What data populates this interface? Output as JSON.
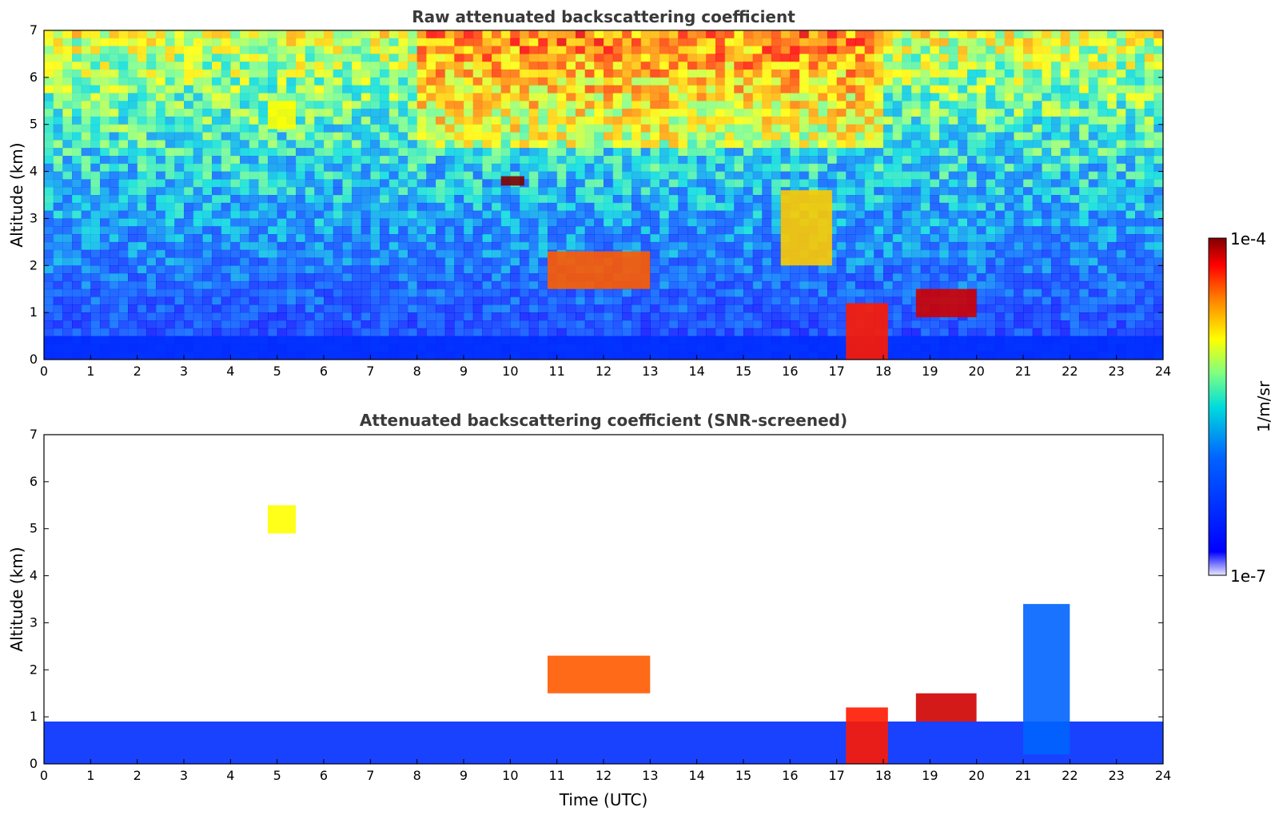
{
  "chart_data": [
    {
      "type": "heatmap",
      "title": "Raw attenuated backscattering coefficient",
      "xlabel": "",
      "ylabel": "Altitude (km)",
      "xlim": [
        0,
        24
      ],
      "ylim": [
        0,
        7
      ],
      "x_ticks": [
        "0",
        "1",
        "2",
        "3",
        "4",
        "5",
        "6",
        "7",
        "8",
        "9",
        "10",
        "11",
        "12",
        "13",
        "14",
        "15",
        "16",
        "17",
        "18",
        "19",
        "20",
        "21",
        "22",
        "23",
        "24"
      ],
      "y_ticks": [
        "0",
        "1",
        "2",
        "3",
        "4",
        "5",
        "6",
        "7"
      ],
      "features": [
        {
          "t": [
            0,
            24
          ],
          "alt": [
            0,
            0.5
          ],
          "level": 0.2
        },
        {
          "t": [
            17.2,
            18.1
          ],
          "alt": [
            0,
            1.2
          ],
          "level": 0.9
        },
        {
          "t": [
            10.8,
            13.0
          ],
          "alt": [
            1.5,
            2.3
          ],
          "level": 0.85
        },
        {
          "t": [
            18.7,
            20.0
          ],
          "alt": [
            0.9,
            1.5
          ],
          "level": 0.95
        },
        {
          "t": [
            9.8,
            10.3
          ],
          "alt": [
            3.7,
            3.9
          ],
          "level": 1.0
        },
        {
          "t": [
            4.8,
            5.4
          ],
          "alt": [
            4.9,
            5.5
          ],
          "level": 0.7
        },
        {
          "t": [
            15.8,
            16.9
          ],
          "alt": [
            2.0,
            3.6
          ],
          "level": 0.75
        }
      ]
    },
    {
      "type": "heatmap",
      "title": "Attenuated backscattering coefficient (SNR-screened)",
      "xlabel": "Time (UTC)",
      "ylabel": "Altitude (km)",
      "xlim": [
        0,
        24
      ],
      "ylim": [
        0,
        7
      ],
      "x_ticks": [
        "0",
        "1",
        "2",
        "3",
        "4",
        "5",
        "6",
        "7",
        "8",
        "9",
        "10",
        "11",
        "12",
        "13",
        "14",
        "15",
        "16",
        "17",
        "18",
        "19",
        "20",
        "21",
        "22",
        "23",
        "24"
      ],
      "y_ticks": [
        "0",
        "1",
        "2",
        "3",
        "4",
        "5",
        "6",
        "7"
      ],
      "features": [
        {
          "t": [
            0,
            24
          ],
          "alt": [
            0,
            0.9
          ],
          "level": 0.2
        },
        {
          "t": [
            17.2,
            18.1
          ],
          "alt": [
            0,
            1.2
          ],
          "level": 0.9
        },
        {
          "t": [
            10.8,
            13.0
          ],
          "alt": [
            1.5,
            2.3
          ],
          "level": 0.85
        },
        {
          "t": [
            18.7,
            20.0
          ],
          "alt": [
            0.9,
            1.5
          ],
          "level": 0.95
        },
        {
          "t": [
            21.0,
            22.0
          ],
          "alt": [
            0.2,
            3.4
          ],
          "level": 0.35
        },
        {
          "t": [
            4.8,
            5.4
          ],
          "alt": [
            4.9,
            5.5
          ],
          "level": 0.7
        }
      ]
    }
  ],
  "colorbar": {
    "label": "1/m/sr",
    "max_label": "1e-4",
    "min_label": "1e-7",
    "colormap": [
      "#e8e8ff",
      "#0000ff",
      "#00c8ff",
      "#80ff80",
      "#ffff00",
      "#ff8000",
      "#ff0000",
      "#800000"
    ]
  }
}
